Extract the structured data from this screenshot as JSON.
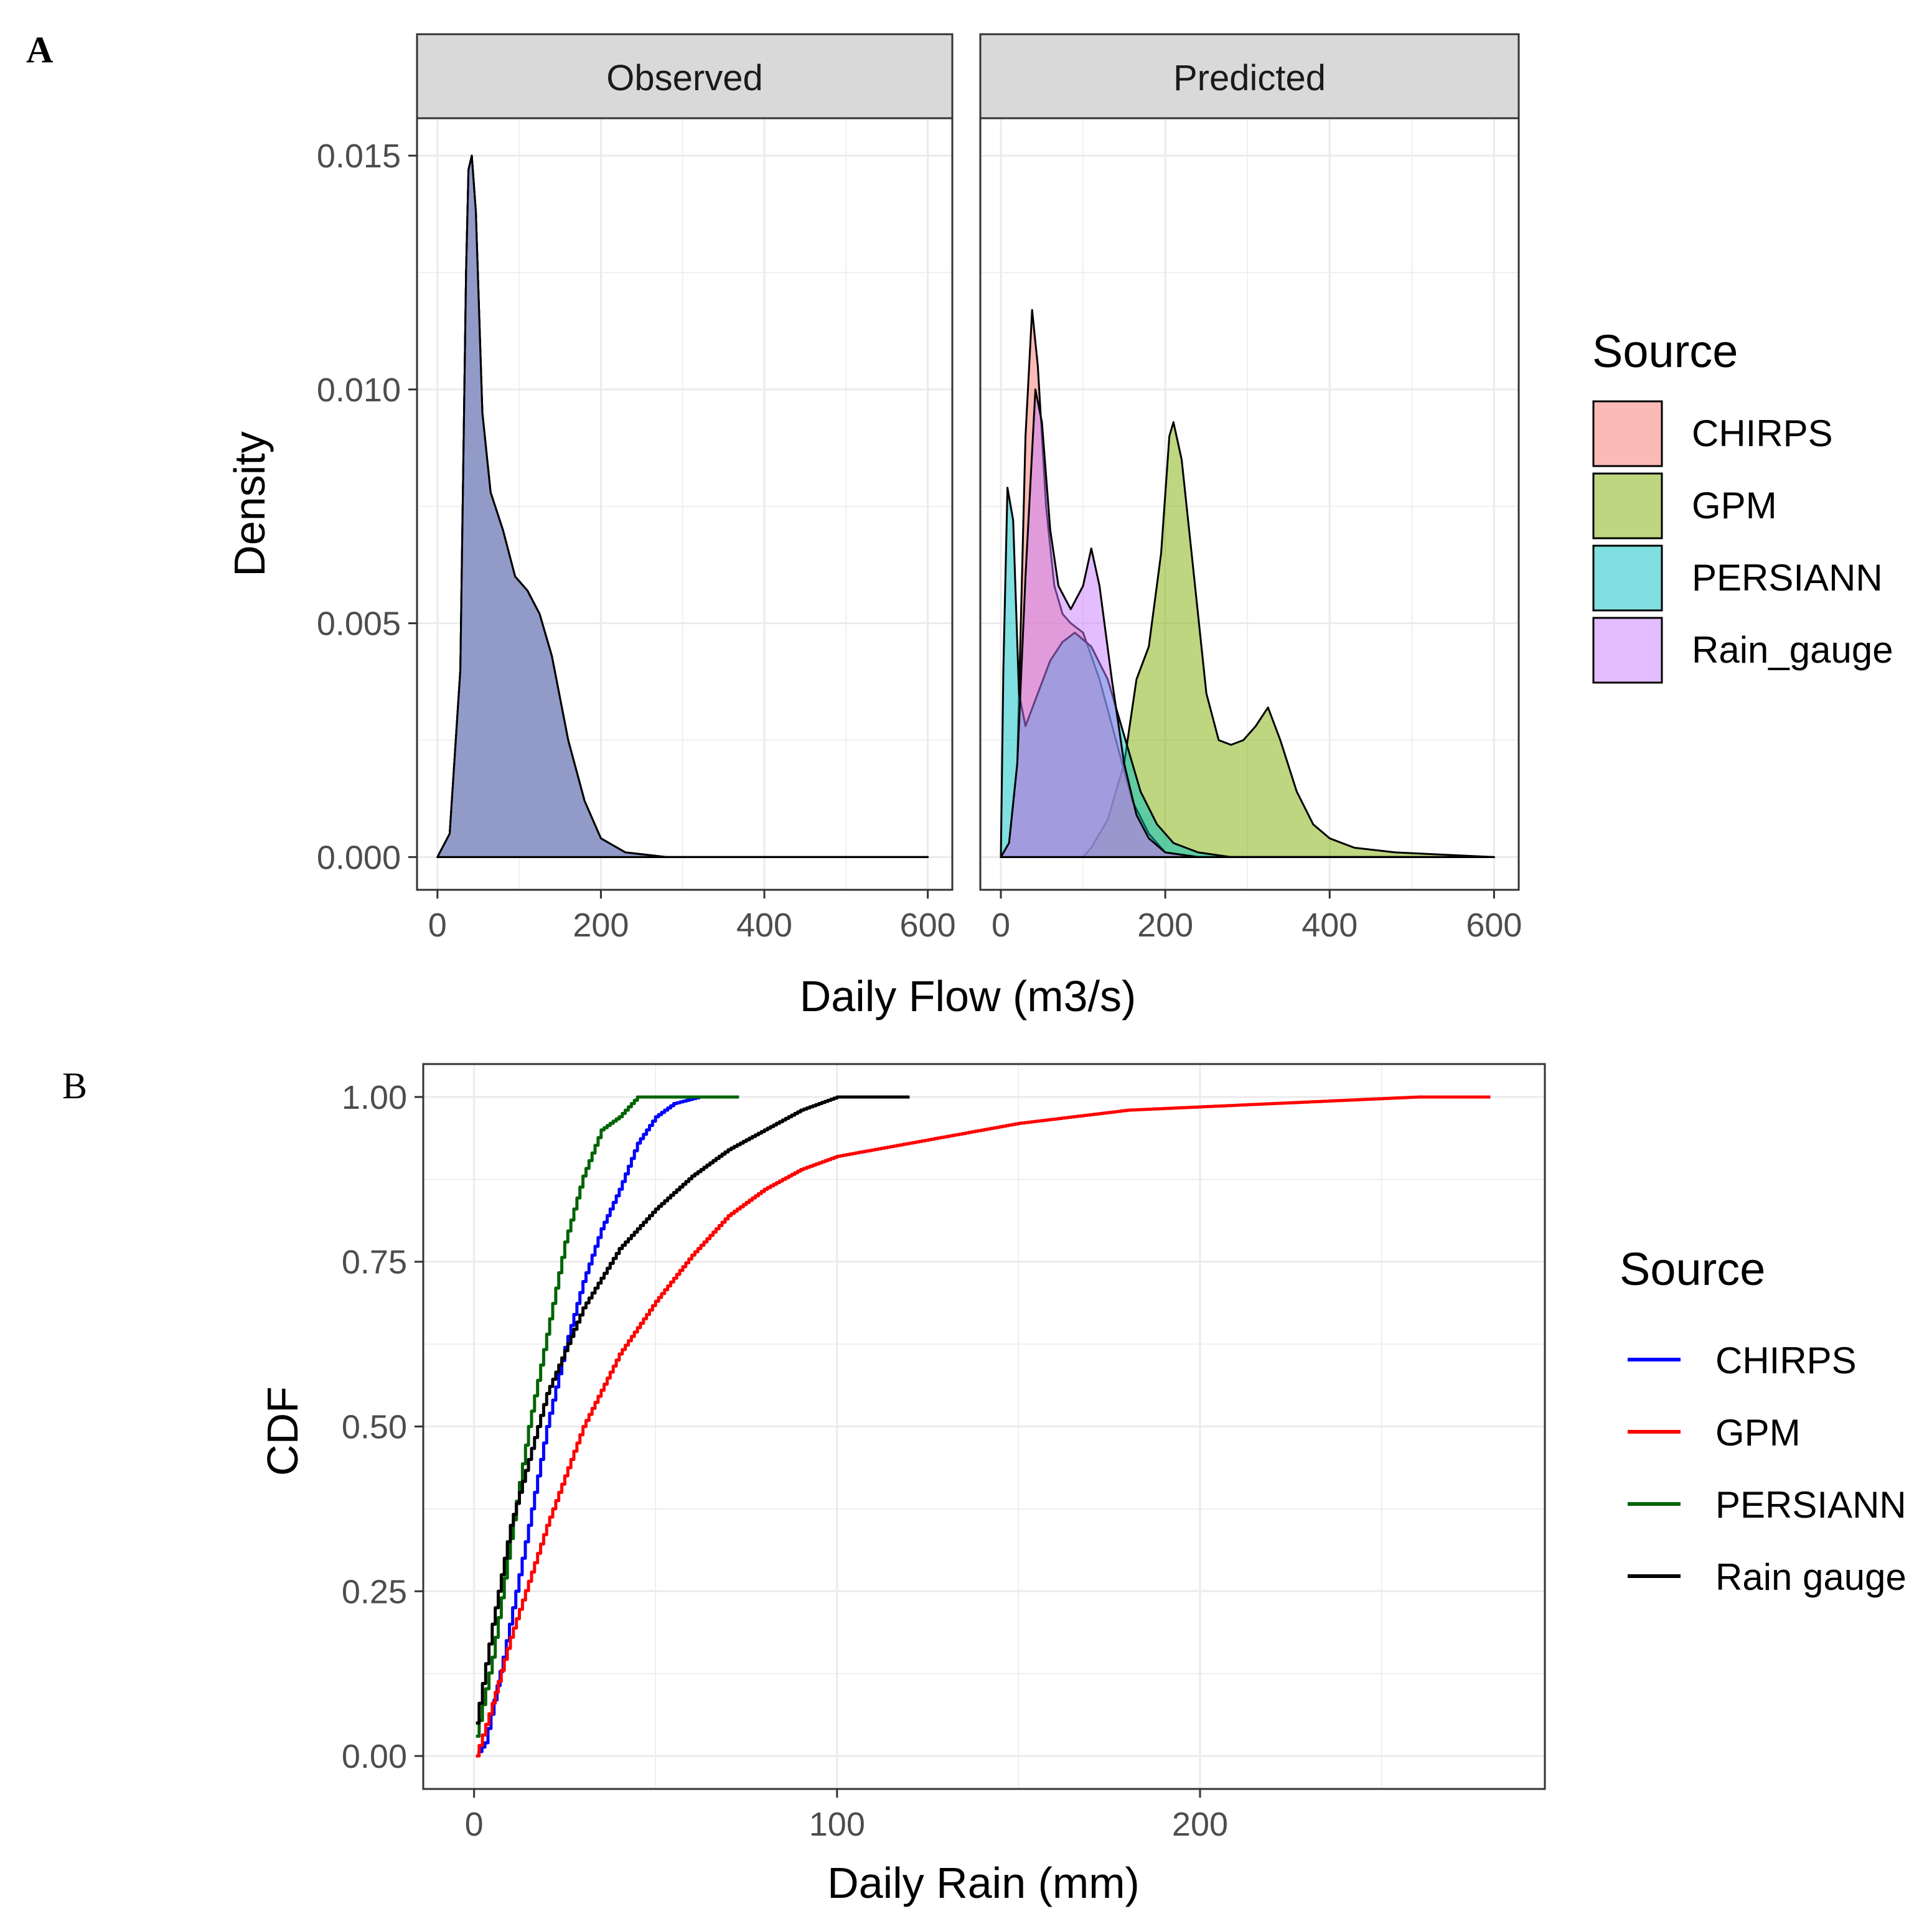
{
  "figure": {
    "label_a": "A",
    "label_b": "B"
  },
  "chart_data": [
    {
      "type": "area",
      "panel_id": "A",
      "facets": [
        "Observed",
        "Predicted"
      ],
      "xlabel": "Daily Flow (m3/s)",
      "ylabel": "Density",
      "xlim": [
        -25,
        630
      ],
      "ylim": [
        -0.0007,
        0.0158
      ],
      "xticks": [
        0,
        200,
        400,
        600
      ],
      "xtick_labels": [
        "0",
        "200",
        "400",
        "600"
      ],
      "yticks": [
        0,
        0.005,
        0.01,
        0.015
      ],
      "ytick_labels": [
        "0.000",
        "0.005",
        "0.010",
        "0.015"
      ],
      "grid": true,
      "legend": {
        "title": "Source",
        "position": "right",
        "items": [
          {
            "label": "CHIRPS",
            "color": "#F8766D"
          },
          {
            "label": "GPM",
            "color": "#7CAE00"
          },
          {
            "label": "PERSIANN",
            "color": "#00BFC4"
          },
          {
            "label": "Rain_gauge",
            "color": "#C77CFF"
          }
        ]
      },
      "series": {
        "Observed": [
          {
            "name": "CHIRPS",
            "color": "#F8766D",
            "points": [
              [
                0,
                0
              ],
              [
                15,
                0.0005
              ],
              [
                28,
                0.004
              ],
              [
                35,
                0.0125
              ],
              [
                38,
                0.0147
              ],
              [
                42,
                0.015
              ],
              [
                47,
                0.0138
              ],
              [
                55,
                0.0095
              ],
              [
                65,
                0.0078
              ],
              [
                80,
                0.007
              ],
              [
                95,
                0.006
              ],
              [
                110,
                0.0057
              ],
              [
                125,
                0.0052
              ],
              [
                140,
                0.0043
              ],
              [
                160,
                0.0025
              ],
              [
                180,
                0.0012
              ],
              [
                200,
                0.0004
              ],
              [
                230,
                0.0001
              ],
              [
                280,
                0
              ],
              [
                600,
                0
              ]
            ]
          },
          {
            "name": "GPM",
            "color": "#7CAE00",
            "points": [
              [
                0,
                0
              ],
              [
                15,
                0.0005
              ],
              [
                28,
                0.004
              ],
              [
                35,
                0.0125
              ],
              [
                38,
                0.0147
              ],
              [
                42,
                0.015
              ],
              [
                47,
                0.0138
              ],
              [
                55,
                0.0095
              ],
              [
                65,
                0.0078
              ],
              [
                80,
                0.007
              ],
              [
                95,
                0.006
              ],
              [
                110,
                0.0057
              ],
              [
                125,
                0.0052
              ],
              [
                140,
                0.0043
              ],
              [
                160,
                0.0025
              ],
              [
                180,
                0.0012
              ],
              [
                200,
                0.0004
              ],
              [
                230,
                0.0001
              ],
              [
                280,
                0
              ],
              [
                600,
                0
              ]
            ]
          },
          {
            "name": "PERSIANN",
            "color": "#00BFC4",
            "points": [
              [
                0,
                0
              ],
              [
                15,
                0.0005
              ],
              [
                28,
                0.004
              ],
              [
                35,
                0.0125
              ],
              [
                38,
                0.0147
              ],
              [
                42,
                0.015
              ],
              [
                47,
                0.0138
              ],
              [
                55,
                0.0095
              ],
              [
                65,
                0.0078
              ],
              [
                80,
                0.007
              ],
              [
                95,
                0.006
              ],
              [
                110,
                0.0057
              ],
              [
                125,
                0.0052
              ],
              [
                140,
                0.0043
              ],
              [
                160,
                0.0025
              ],
              [
                180,
                0.0012
              ],
              [
                200,
                0.0004
              ],
              [
                230,
                0.0001
              ],
              [
                280,
                0
              ],
              [
                600,
                0
              ]
            ]
          },
          {
            "name": "Rain_gauge",
            "color": "#C77CFF",
            "points": [
              [
                0,
                0
              ],
              [
                15,
                0.0005
              ],
              [
                28,
                0.004
              ],
              [
                35,
                0.0125
              ],
              [
                38,
                0.0147
              ],
              [
                42,
                0.015
              ],
              [
                47,
                0.0138
              ],
              [
                55,
                0.0095
              ],
              [
                65,
                0.0078
              ],
              [
                80,
                0.007
              ],
              [
                95,
                0.006
              ],
              [
                110,
                0.0057
              ],
              [
                125,
                0.0052
              ],
              [
                140,
                0.0043
              ],
              [
                160,
                0.0025
              ],
              [
                180,
                0.0012
              ],
              [
                200,
                0.0004
              ],
              [
                230,
                0.0001
              ],
              [
                280,
                0
              ],
              [
                600,
                0
              ]
            ]
          }
        ],
        "Predicted": [
          {
            "name": "CHIRPS",
            "color": "#F8766D",
            "points": [
              [
                0,
                0
              ],
              [
                10,
                0.0003
              ],
              [
                20,
                0.002
              ],
              [
                30,
                0.009
              ],
              [
                38,
                0.0117
              ],
              [
                45,
                0.0105
              ],
              [
                55,
                0.0075
              ],
              [
                65,
                0.0058
              ],
              [
                75,
                0.0052
              ],
              [
                85,
                0.005
              ],
              [
                100,
                0.0048
              ],
              [
                120,
                0.0038
              ],
              [
                140,
                0.0025
              ],
              [
                160,
                0.0012
              ],
              [
                180,
                0.0005
              ],
              [
                200,
                0.0001
              ],
              [
                240,
                0
              ],
              [
                600,
                0
              ]
            ]
          },
          {
            "name": "GPM",
            "color": "#7CAE00",
            "points": [
              [
                0,
                0
              ],
              [
                50,
                0
              ],
              [
                100,
                0
              ],
              [
                110,
                0.0002
              ],
              [
                130,
                0.0008
              ],
              [
                150,
                0.002
              ],
              [
                165,
                0.0038
              ],
              [
                180,
                0.0045
              ],
              [
                195,
                0.0065
              ],
              [
                205,
                0.009
              ],
              [
                210,
                0.0093
              ],
              [
                220,
                0.0085
              ],
              [
                235,
                0.006
              ],
              [
                250,
                0.0035
              ],
              [
                265,
                0.0025
              ],
              [
                280,
                0.0024
              ],
              [
                295,
                0.0025
              ],
              [
                310,
                0.0028
              ],
              [
                325,
                0.0032
              ],
              [
                340,
                0.0025
              ],
              [
                360,
                0.0014
              ],
              [
                380,
                0.0007
              ],
              [
                400,
                0.0004
              ],
              [
                430,
                0.0002
              ],
              [
                480,
                0.0001
              ],
              [
                600,
                0
              ]
            ]
          },
          {
            "name": "PERSIANN",
            "color": "#00BFC4",
            "points": [
              [
                0,
                0
              ],
              [
                3,
                0.004
              ],
              [
                8,
                0.0079
              ],
              [
                15,
                0.0072
              ],
              [
                22,
                0.0035
              ],
              [
                30,
                0.0028
              ],
              [
                45,
                0.0035
              ],
              [
                60,
                0.0042
              ],
              [
                75,
                0.0046
              ],
              [
                90,
                0.0048
              ],
              [
                110,
                0.0045
              ],
              [
                130,
                0.0038
              ],
              [
                150,
                0.0026
              ],
              [
                170,
                0.0014
              ],
              [
                190,
                0.0007
              ],
              [
                210,
                0.0003
              ],
              [
                240,
                0.0001
              ],
              [
                280,
                0
              ],
              [
                600,
                0
              ]
            ]
          },
          {
            "name": "Rain_gauge",
            "color": "#C77CFF",
            "points": [
              [
                0,
                0
              ],
              [
                10,
                0.0003
              ],
              [
                20,
                0.002
              ],
              [
                30,
                0.006
              ],
              [
                42,
                0.01
              ],
              [
                50,
                0.0093
              ],
              [
                60,
                0.007
              ],
              [
                70,
                0.0058
              ],
              [
                85,
                0.0053
              ],
              [
                100,
                0.0058
              ],
              [
                110,
                0.0066
              ],
              [
                120,
                0.0058
              ],
              [
                135,
                0.0038
              ],
              [
                150,
                0.002
              ],
              [
                165,
                0.0009
              ],
              [
                180,
                0.0004
              ],
              [
                200,
                0.0001
              ],
              [
                240,
                0
              ],
              [
                600,
                0
              ]
            ]
          }
        ]
      }
    },
    {
      "type": "line",
      "panel_id": "B",
      "xlabel": "Daily Rain (mm)",
      "ylabel": "CDF",
      "xlim": [
        -14,
        295
      ],
      "ylim": [
        -0.05,
        1.05
      ],
      "xticks": [
        0,
        100,
        200
      ],
      "xtick_labels": [
        "0",
        "100",
        "200"
      ],
      "yticks": [
        0,
        0.25,
        0.5,
        0.75,
        1
      ],
      "ytick_labels": [
        "0.00",
        "0.25",
        "0.50",
        "0.75",
        "1.00"
      ],
      "grid": true,
      "legend": {
        "title": "Source",
        "position": "right",
        "items": [
          {
            "label": "CHIRPS",
            "color": "#0000FF"
          },
          {
            "label": "GPM",
            "color": "#FF0000"
          },
          {
            "label": "PERSIANN",
            "color": "#006400"
          },
          {
            "label": "Rain gauge",
            "color": "#000000"
          }
        ]
      },
      "series": [
        {
          "name": "CHIRPS",
          "color": "#0000FF",
          "points": [
            [
              0.5,
              0
            ],
            [
              3,
              0.02
            ],
            [
              8,
              0.15
            ],
            [
              15,
              0.35
            ],
            [
              20,
              0.5
            ],
            [
              25,
              0.62
            ],
            [
              30,
              0.72
            ],
            [
              35,
              0.8
            ],
            [
              40,
              0.86
            ],
            [
              45,
              0.93
            ],
            [
              50,
              0.97
            ],
            [
              55,
              0.99
            ],
            [
              62,
              1
            ],
            [
              65,
              1
            ]
          ]
        },
        {
          "name": "GPM",
          "color": "#FF0000",
          "points": [
            [
              0.5,
              0
            ],
            [
              5,
              0.08
            ],
            [
              10,
              0.18
            ],
            [
              20,
              0.35
            ],
            [
              30,
              0.5
            ],
            [
              40,
              0.61
            ],
            [
              50,
              0.69
            ],
            [
              60,
              0.76
            ],
            [
              70,
              0.82
            ],
            [
              80,
              0.86
            ],
            [
              90,
              0.89
            ],
            [
              100,
              0.91
            ],
            [
              120,
              0.93
            ],
            [
              150,
              0.96
            ],
            [
              180,
              0.98
            ],
            [
              220,
              0.99
            ],
            [
              260,
              1
            ],
            [
              280,
              1
            ]
          ]
        },
        {
          "name": "PERSIANN",
          "color": "#006400",
          "points": [
            [
              0.5,
              0.03
            ],
            [
              5,
              0.15
            ],
            [
              10,
              0.33
            ],
            [
              15,
              0.5
            ],
            [
              20,
              0.64
            ],
            [
              25,
              0.78
            ],
            [
              30,
              0.88
            ],
            [
              35,
              0.95
            ],
            [
              40,
              0.97
            ],
            [
              45,
              1
            ],
            [
              60,
              1
            ],
            [
              73,
              1
            ]
          ]
        },
        {
          "name": "Rain gauge",
          "color": "#000000",
          "points": [
            [
              0.5,
              0.05
            ],
            [
              5,
              0.2
            ],
            [
              10,
              0.35
            ],
            [
              20,
              0.55
            ],
            [
              30,
              0.68
            ],
            [
              40,
              0.77
            ],
            [
              50,
              0.83
            ],
            [
              60,
              0.88
            ],
            [
              70,
              0.92
            ],
            [
              80,
              0.95
            ],
            [
              90,
              0.98
            ],
            [
              100,
              1
            ],
            [
              120,
              1
            ]
          ]
        }
      ]
    }
  ]
}
